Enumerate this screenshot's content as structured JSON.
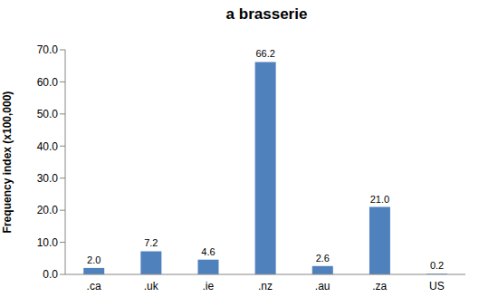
{
  "chart_data": {
    "type": "bar",
    "title": "a brasserie",
    "y_label": "Frequency index (x100,000)",
    "categories": [
      ".ca",
      ".uk",
      ".ie",
      ".nz",
      ".au",
      ".za",
      "US"
    ],
    "values": [
      2.0,
      7.2,
      4.6,
      66.2,
      2.6,
      21.0,
      0.2
    ],
    "value_labels": [
      "2.0",
      "7.2",
      "4.6",
      "66.2",
      "2.6",
      "21.0",
      "0.2"
    ],
    "data_labels": true,
    "color": "#4f81bd",
    "ylim": [
      0,
      70
    ],
    "yticks": [
      {
        "value": 0,
        "label": "0.0"
      },
      {
        "value": 10,
        "label": "10.0"
      },
      {
        "value": 20,
        "label": "20.0"
      },
      {
        "value": 30,
        "label": "30.0"
      },
      {
        "value": 40,
        "label": "40.0"
      },
      {
        "value": 50,
        "label": "50.0"
      },
      {
        "value": 60,
        "label": "60.0"
      },
      {
        "value": 70,
        "label": "70.0"
      }
    ],
    "grid": false
  }
}
